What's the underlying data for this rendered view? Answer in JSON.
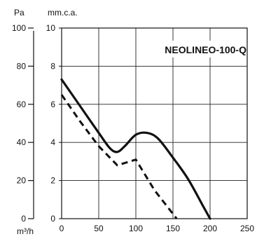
{
  "chart_data": {
    "type": "line",
    "title": "NEOLINEO-100-Q",
    "xlabel": "m³/h",
    "ylabel": "mm.c.a.",
    "ylabel_secondary": "Pa",
    "xlim": [
      0,
      250
    ],
    "ylim": [
      0,
      10
    ],
    "ylim_secondary": [
      0,
      100
    ],
    "grid": true,
    "x_ticks": [
      "0",
      "50",
      "100",
      "150",
      "200",
      "250"
    ],
    "y_ticks": [
      "0",
      "2",
      "4",
      "6",
      "8",
      "10"
    ],
    "y_ticks_secondary": [
      "0",
      "20",
      "40",
      "60",
      "80",
      "100"
    ],
    "series": [
      {
        "style": "solid",
        "x": [
          0,
          25,
          50,
          65,
          75,
          85,
          100,
          115,
          130,
          150,
          170,
          190,
          200
        ],
        "y": [
          7.3,
          5.9,
          4.5,
          3.7,
          3.5,
          3.8,
          4.4,
          4.5,
          4.2,
          3.2,
          2.1,
          0.7,
          0.0
        ]
      },
      {
        "style": "dashed",
        "x": [
          0,
          25,
          50,
          75,
          100,
          125,
          155
        ],
        "y": [
          6.5,
          5.1,
          3.8,
          2.8,
          3.1,
          1.5,
          0.0
        ]
      }
    ]
  }
}
